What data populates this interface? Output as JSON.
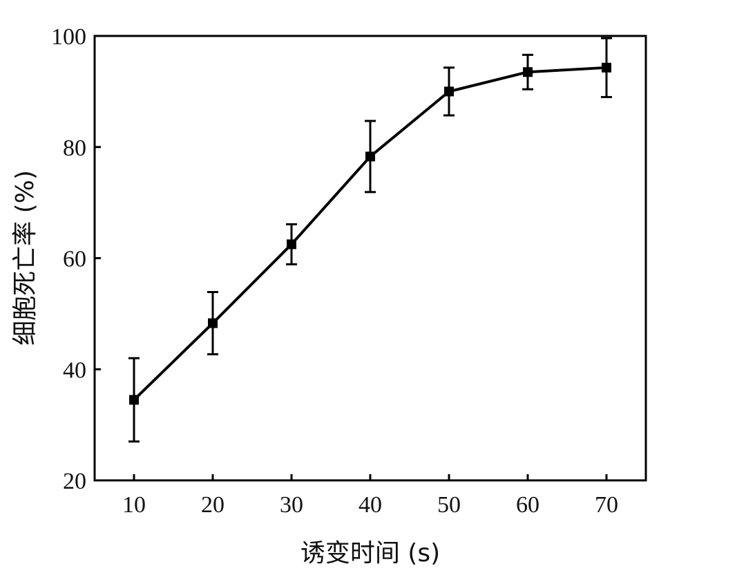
{
  "chart_data": {
    "type": "line",
    "xlabel": "诱变时间 (s)",
    "ylabel": "细胞死亡率 (%)",
    "xlim": [
      5,
      75
    ],
    "ylim": [
      20,
      100
    ],
    "x_ticks": [
      10,
      20,
      30,
      40,
      50,
      60,
      70
    ],
    "y_ticks": [
      20,
      40,
      60,
      80,
      100
    ],
    "grid": false,
    "series": [
      {
        "marker": "square",
        "color": "#000000",
        "x": [
          10,
          20,
          30,
          40,
          50,
          60,
          70
        ],
        "y": [
          34.5,
          48.3,
          62.5,
          78.3,
          90.0,
          93.5,
          94.3
        ],
        "error": [
          7.5,
          5.6,
          3.6,
          6.4,
          4.3,
          3.1,
          5.3
        ]
      }
    ]
  }
}
